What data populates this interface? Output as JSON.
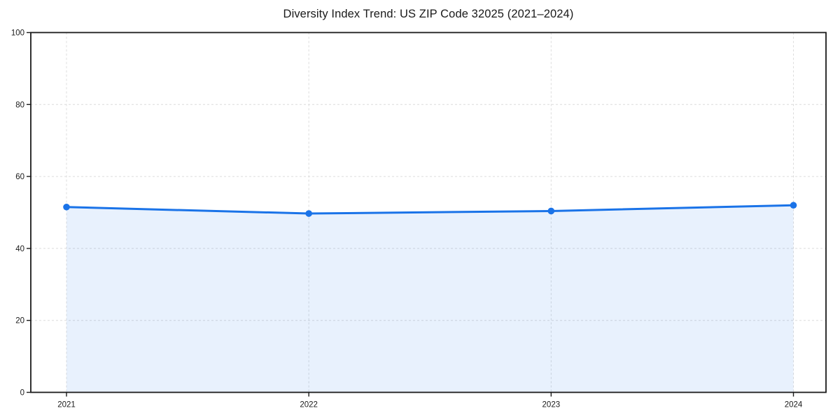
{
  "chart_data": {
    "type": "area",
    "title": "Diversity Index Trend: US ZIP Code 32025 (2021–2024)",
    "categories": [
      "2021",
      "2022",
      "2023",
      "2024"
    ],
    "series": [
      {
        "name": "Diversity Index",
        "values": [
          51.5,
          49.7,
          50.4,
          52.0
        ]
      }
    ],
    "xlabel": "",
    "ylabel": "",
    "ylim": [
      0,
      100
    ],
    "yticks": [
      0,
      20,
      40,
      60,
      80,
      100
    ],
    "grid": "dashed",
    "legend_position": "none",
    "line_color": "#1a73e8",
    "fill_color": "#1a73e8",
    "fill_opacity": 0.1,
    "marker": "circle",
    "background": "#ffffff",
    "axis_color": "#1a1a1a",
    "grid_color": "#dcdcdc",
    "text_color": "#1a1a1a"
  }
}
